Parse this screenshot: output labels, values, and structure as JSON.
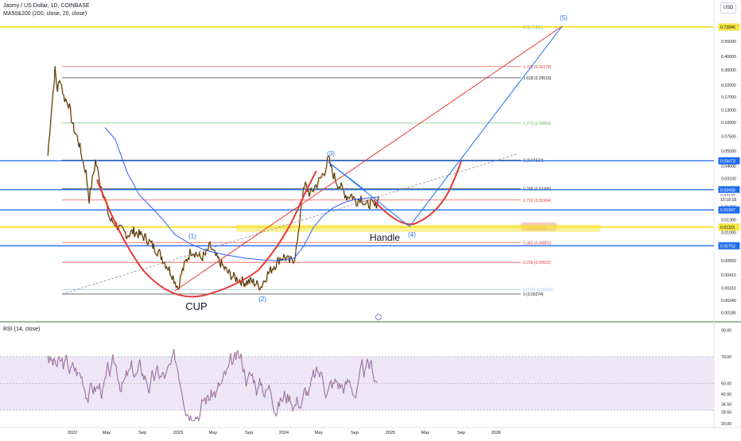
{
  "header": {
    "title": "Jasmy / US Dollar, 1D, COINBASE",
    "indicator": "MA50&200 (200, close, 20, close)",
    "currency": "USD"
  },
  "rsi": {
    "label": "RSI (14, close)"
  },
  "colors": {
    "background": "#ffffff",
    "price_line": "#1e1e1e",
    "price_alt": "#e8a33d",
    "ma_line": "#2962ff",
    "cup_curve": "#e53935",
    "projection": "#1e6df0",
    "fib_yellow": "#f5e43f",
    "rsi_line": "#7e57c2",
    "rsi_band": "#ece6f6"
  },
  "chart_data": [
    {
      "type": "line",
      "scale": "log",
      "x_ticks": [
        "2022",
        "May",
        "Sep",
        "2023",
        "May",
        "Sep",
        "2024",
        "May",
        "Sep",
        "2025",
        "May",
        "Sep",
        "2026"
      ],
      "y_ticks": [
        "0.55000",
        "0.40000",
        "0.30000",
        "0.22000",
        "0.17000",
        "0.13000",
        "0.10000",
        "0.07500",
        "0.05500",
        "0.04000",
        "0.03100",
        "0.02300",
        "0.01700",
        "0.01300",
        "0.01000",
        "0.00550",
        "0.00410",
        "0.00310",
        "0.00240",
        "0.00185"
      ],
      "price_tags": [
        {
          "label": "0.73946",
          "price": 0.73946,
          "color": "#f5e43f",
          "text_color": "#131722"
        },
        {
          "label": "0.04473",
          "price": 0.04473,
          "color": "#1e6df0",
          "text_color": "#ffffff"
        },
        {
          "label": "0.02439",
          "price": 0.02439,
          "color": "#1e6df0",
          "text_color": "#ffffff"
        },
        {
          "label": "0.02137",
          "price": 0.02137,
          "color": "#ffffff",
          "text_color": "#131722"
        },
        {
          "label": "15:18:18",
          "price": 0.0199,
          "color": "#ffffff",
          "text_color": "#131722"
        },
        {
          "label": "0.01597",
          "price": 0.01597,
          "color": "#1e6df0",
          "text_color": "#ffffff"
        },
        {
          "label": "0.01115",
          "price": 0.01115,
          "color": "#f5e43f",
          "text_color": "#131722"
        },
        {
          "label": "0.00753",
          "price": 0.00753,
          "color": "#1e6df0",
          "text_color": "#ffffff"
        }
      ],
      "horizontal_lines": [
        {
          "price": 0.73946,
          "color": "#f5e43f",
          "width": 2
        },
        {
          "price": 0.04473,
          "color": "#1e6df0",
          "width": 1.3
        },
        {
          "price": 0.02439,
          "color": "#1e6df0",
          "width": 1.3
        },
        {
          "price": 0.01597,
          "color": "#1e6df0",
          "width": 1.3
        },
        {
          "price": 0.01115,
          "color": "#f5e43f",
          "width": 2.2
        },
        {
          "price": 0.00753,
          "color": "#1e6df0",
          "width": 1.3
        }
      ],
      "fib_levels": [
        {
          "label": "2 (0.74230)",
          "price": 0.7423,
          "color": "#43a047",
          "line": false
        },
        {
          "label": "1.702 (0.32278)",
          "price": 0.32278,
          "color": "#e53935",
          "line": true
        },
        {
          "label": "1.618 (0.25515)",
          "price": 0.25515,
          "color": "#131722",
          "line": true
        },
        {
          "label": "1.272 (0.09869)",
          "price": 0.09869,
          "color": "#66bb6a",
          "line": true
        },
        {
          "label": "1 (0.04524)",
          "price": 0.04524,
          "color": "#131722",
          "line": true
        },
        {
          "label": "0.786 (0.02485)",
          "price": 0.02485,
          "color": "#131722",
          "line": true
        },
        {
          "label": "0.702 (0.01964)",
          "price": 0.01964,
          "color": "#e53935",
          "line": true
        },
        {
          "label": "0.5 (0.01115)",
          "price": 0.01115,
          "color": "#e53935",
          "line": false
        },
        {
          "label": "0.382 (0.00801)",
          "price": 0.00801,
          "color": "#e53935",
          "line": true
        },
        {
          "label": "0.236 (0.00532)",
          "price": 0.00532,
          "color": "#e53935",
          "line": true
        },
        {
          "label": "0.0236 (0.00301)",
          "price": 0.00301,
          "color": "#90caf9",
          "line": true
        },
        {
          "label": "0 (0.00274)",
          "price": 0.00274,
          "color": "#131722",
          "line": true
        }
      ],
      "annotations": [
        {
          "text": "CUP",
          "color": "#131722",
          "kind": "big"
        },
        {
          "text": "Handle",
          "color": "#131722",
          "kind": "big"
        },
        {
          "text": "(1)",
          "color": "#1e6df0",
          "kind": "wave"
        },
        {
          "text": "(2)",
          "color": "#1e6df0",
          "kind": "wave"
        },
        {
          "text": "(3)",
          "color": "#1e6df0",
          "kind": "wave"
        },
        {
          "text": "(4)",
          "color": "#1e6df0",
          "kind": "wave"
        },
        {
          "text": "(5)",
          "color": "#1e6df0",
          "kind": "wave"
        }
      ]
    },
    {
      "type": "line",
      "name": "RSI (14, close)",
      "y_ticks": [
        "90.00",
        "70.00",
        "50.00",
        "42.00",
        "34.50",
        "28.50",
        "20.00"
      ],
      "band": [
        30,
        70
      ],
      "ylim": [
        20,
        92
      ]
    }
  ]
}
